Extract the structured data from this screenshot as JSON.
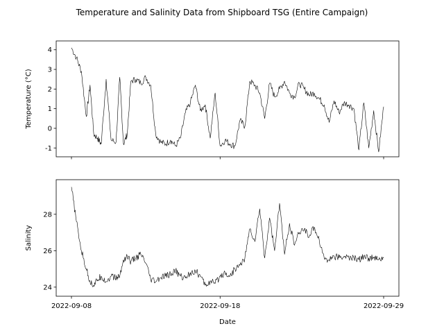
{
  "chart_data": {
    "type": "line",
    "title": "Temperature and Salinity Data from Shipboard TSG (Entire Campaign)",
    "xlabel": "Date",
    "x_tick_labels": [
      "2022-09-08",
      "2022-09-18",
      "2022-09-29"
    ],
    "x_ticks": [
      "2022-09-08",
      "2022-09-18",
      "2022-09-29"
    ],
    "line_color": "#000000",
    "grid": false,
    "legend": "none",
    "subplots": [
      {
        "name": "temperature",
        "ylabel": "Temperature (°C)",
        "ylim": [
          -1.45,
          4.45
        ],
        "yticks": [
          -1,
          0,
          1,
          2,
          3,
          4
        ],
        "series": [
          {
            "x": [
              "2022-09-08",
              "2022-09-08",
              "2022-09-08",
              "2022-09-09",
              "2022-09-09",
              "2022-09-09",
              "2022-09-09",
              "2022-09-10",
              "2022-09-10",
              "2022-09-10",
              "2022-09-11",
              "2022-09-11",
              "2022-09-11",
              "2022-09-11",
              "2022-09-12",
              "2022-09-12",
              "2022-09-12",
              "2022-09-13",
              "2022-09-13",
              "2022-09-13",
              "2022-09-14",
              "2022-09-14",
              "2022-09-14",
              "2022-09-15",
              "2022-09-15",
              "2022-09-15",
              "2022-09-16",
              "2022-09-16",
              "2022-09-16",
              "2022-09-17",
              "2022-09-17",
              "2022-09-17",
              "2022-09-18",
              "2022-09-18",
              "2022-09-18",
              "2022-09-19",
              "2022-09-19",
              "2022-09-19",
              "2022-09-20",
              "2022-09-20",
              "2022-09-20",
              "2022-09-21",
              "2022-09-21",
              "2022-09-21",
              "2022-09-22",
              "2022-09-22",
              "2022-09-22",
              "2022-09-23",
              "2022-09-23",
              "2022-09-23",
              "2022-09-24",
              "2022-09-24",
              "2022-09-24",
              "2022-09-25",
              "2022-09-25",
              "2022-09-25",
              "2022-09-26",
              "2022-09-26",
              "2022-09-26",
              "2022-09-27",
              "2022-09-27",
              "2022-09-27",
              "2022-09-28",
              "2022-09-28",
              "2022-09-28",
              "2022-09-29"
            ],
            "y": [
              4.1,
              3.6,
              2.9,
              0.6,
              2.2,
              -0.3,
              -0.5,
              -0.8,
              2.5,
              -0.6,
              -0.7,
              2.6,
              -0.8,
              -0.3,
              2.4,
              2.5,
              2.3,
              2.6,
              2.2,
              -0.3,
              -0.7,
              -0.8,
              -0.6,
              -0.9,
              -0.5,
              0.8,
              1.3,
              2.2,
              0.9,
              1.2,
              -0.5,
              1.8,
              -0.9,
              -0.6,
              -0.8,
              -0.9,
              0.4,
              0.1,
              2.4,
              2.2,
              1.8,
              0.5,
              2.3,
              1.6,
              2.0,
              2.4,
              1.8,
              1.6,
              2.3,
              2.0,
              1.7,
              1.8,
              1.5,
              1.2,
              0.3,
              1.4,
              0.8,
              1.3,
              1.2,
              1.0,
              -1.1,
              1.3,
              -1.0,
              0.9,
              -1.2,
              1.1
            ]
          }
        ]
      },
      {
        "name": "salinity",
        "ylabel": "Salinity",
        "ylim": [
          23.5,
          29.9
        ],
        "yticks": [
          24,
          26,
          28
        ],
        "series": [
          {
            "x": [
              "2022-09-08",
              "2022-09-08",
              "2022-09-08",
              "2022-09-09",
              "2022-09-09",
              "2022-09-09",
              "2022-09-09",
              "2022-09-10",
              "2022-09-10",
              "2022-09-10",
              "2022-09-11",
              "2022-09-11",
              "2022-09-11",
              "2022-09-11",
              "2022-09-12",
              "2022-09-12",
              "2022-09-12",
              "2022-09-13",
              "2022-09-13",
              "2022-09-13",
              "2022-09-14",
              "2022-09-14",
              "2022-09-14",
              "2022-09-15",
              "2022-09-15",
              "2022-09-15",
              "2022-09-16",
              "2022-09-16",
              "2022-09-16",
              "2022-09-17",
              "2022-09-17",
              "2022-09-17",
              "2022-09-18",
              "2022-09-18",
              "2022-09-18",
              "2022-09-19",
              "2022-09-19",
              "2022-09-19",
              "2022-09-20",
              "2022-09-20",
              "2022-09-20",
              "2022-09-21",
              "2022-09-21",
              "2022-09-21",
              "2022-09-22",
              "2022-09-22",
              "2022-09-22",
              "2022-09-23",
              "2022-09-23",
              "2022-09-23",
              "2022-09-24",
              "2022-09-24",
              "2022-09-24",
              "2022-09-25",
              "2022-09-25",
              "2022-09-25",
              "2022-09-26",
              "2022-09-26",
              "2022-09-26",
              "2022-09-27",
              "2022-09-27",
              "2022-09-27",
              "2022-09-28",
              "2022-09-28",
              "2022-09-28",
              "2022-09-29"
            ],
            "y": [
              29.5,
              27.6,
              26.0,
              25.0,
              24.3,
              24.1,
              24.4,
              24.6,
              24.3,
              24.6,
              24.5,
              24.6,
              25.5,
              25.7,
              25.4,
              25.6,
              25.8,
              25.3,
              24.4,
              24.3,
              24.5,
              24.6,
              24.7,
              24.9,
              24.6,
              24.5,
              24.8,
              24.9,
              24.6,
              24.1,
              24.3,
              24.2,
              24.6,
              24.8,
              24.6,
              25.0,
              25.2,
              25.6,
              27.2,
              26.5,
              28.3,
              25.6,
              27.8,
              26.0,
              28.6,
              25.8,
              27.5,
              26.3,
              27.0,
              27.2,
              26.8,
              27.3,
              26.6,
              25.6,
              25.5,
              25.7,
              25.6,
              25.7,
              25.6,
              25.6,
              25.5,
              25.7,
              25.6,
              25.6,
              25.5,
              25.6
            ]
          }
        ]
      }
    ]
  }
}
